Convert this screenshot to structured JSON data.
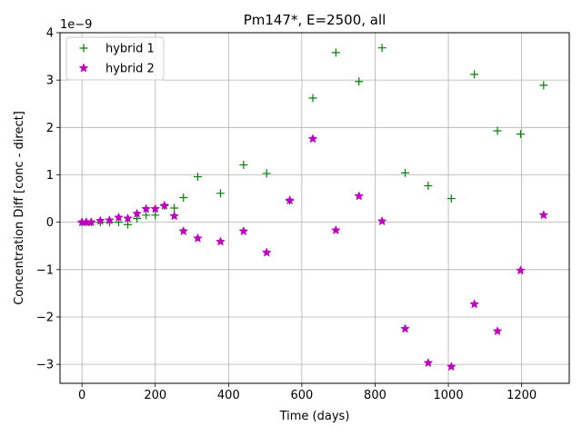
{
  "chart_data": {
    "type": "scatter",
    "title": "Pm147*, E=2500, all",
    "xlabel": "Time (days)",
    "ylabel": "Concentration Diff [conc - direct]",
    "y_offset_text": "1e−9",
    "xlim": [
      -60,
      1330
    ],
    "ylim": [
      -3.4,
      4.0
    ],
    "xticks": [
      0,
      200,
      400,
      600,
      800,
      1000,
      1200
    ],
    "yticks": [
      -3,
      -2,
      -1,
      0,
      1,
      2,
      3,
      4
    ],
    "xtick_labels": [
      "0",
      "200",
      "400",
      "600",
      "800",
      "1000",
      "1200"
    ],
    "ytick_labels": [
      "−3",
      "−2",
      "−1",
      "0",
      "1",
      "2",
      "3",
      "4"
    ],
    "grid": true,
    "legend_position": "upper-left",
    "legend_entries": [
      "hybrid 1",
      "hybrid 2"
    ],
    "series": [
      {
        "name": "hybrid 1",
        "marker": "+",
        "color": "#008000",
        "x": [
          0,
          12,
          25,
          50,
          75,
          100,
          125,
          150,
          175,
          200,
          225,
          252,
          277,
          316,
          378,
          441,
          504,
          567,
          630,
          693,
          756,
          819,
          882,
          945,
          1008,
          1071,
          1134,
          1197,
          1260
        ],
        "y": [
          0.0,
          0.0,
          0.0,
          0.0,
          0.0,
          0.0,
          -0.05,
          0.08,
          0.15,
          0.15,
          0.35,
          0.3,
          0.52,
          0.96,
          0.61,
          1.21,
          1.03,
          0.46,
          2.62,
          3.58,
          2.97,
          3.68,
          1.04,
          0.77,
          0.5,
          3.12,
          1.93,
          1.86,
          2.89
        ]
      },
      {
        "name": "hybrid 2",
        "marker": "*",
        "color": "#bf00bf",
        "x": [
          0,
          12,
          25,
          50,
          75,
          100,
          125,
          150,
          175,
          200,
          225,
          252,
          277,
          316,
          378,
          441,
          504,
          567,
          630,
          693,
          756,
          819,
          882,
          945,
          1008,
          1071,
          1134,
          1197,
          1260
        ],
        "y": [
          0.0,
          0.0,
          0.0,
          0.03,
          0.04,
          0.1,
          0.08,
          0.18,
          0.28,
          0.28,
          0.35,
          0.13,
          -0.19,
          -0.34,
          -0.41,
          -0.19,
          -0.64,
          0.46,
          1.76,
          -0.17,
          0.55,
          0.02,
          -2.25,
          -2.97,
          -3.05,
          -1.73,
          -2.3,
          -1.02,
          0.15
        ]
      }
    ]
  }
}
